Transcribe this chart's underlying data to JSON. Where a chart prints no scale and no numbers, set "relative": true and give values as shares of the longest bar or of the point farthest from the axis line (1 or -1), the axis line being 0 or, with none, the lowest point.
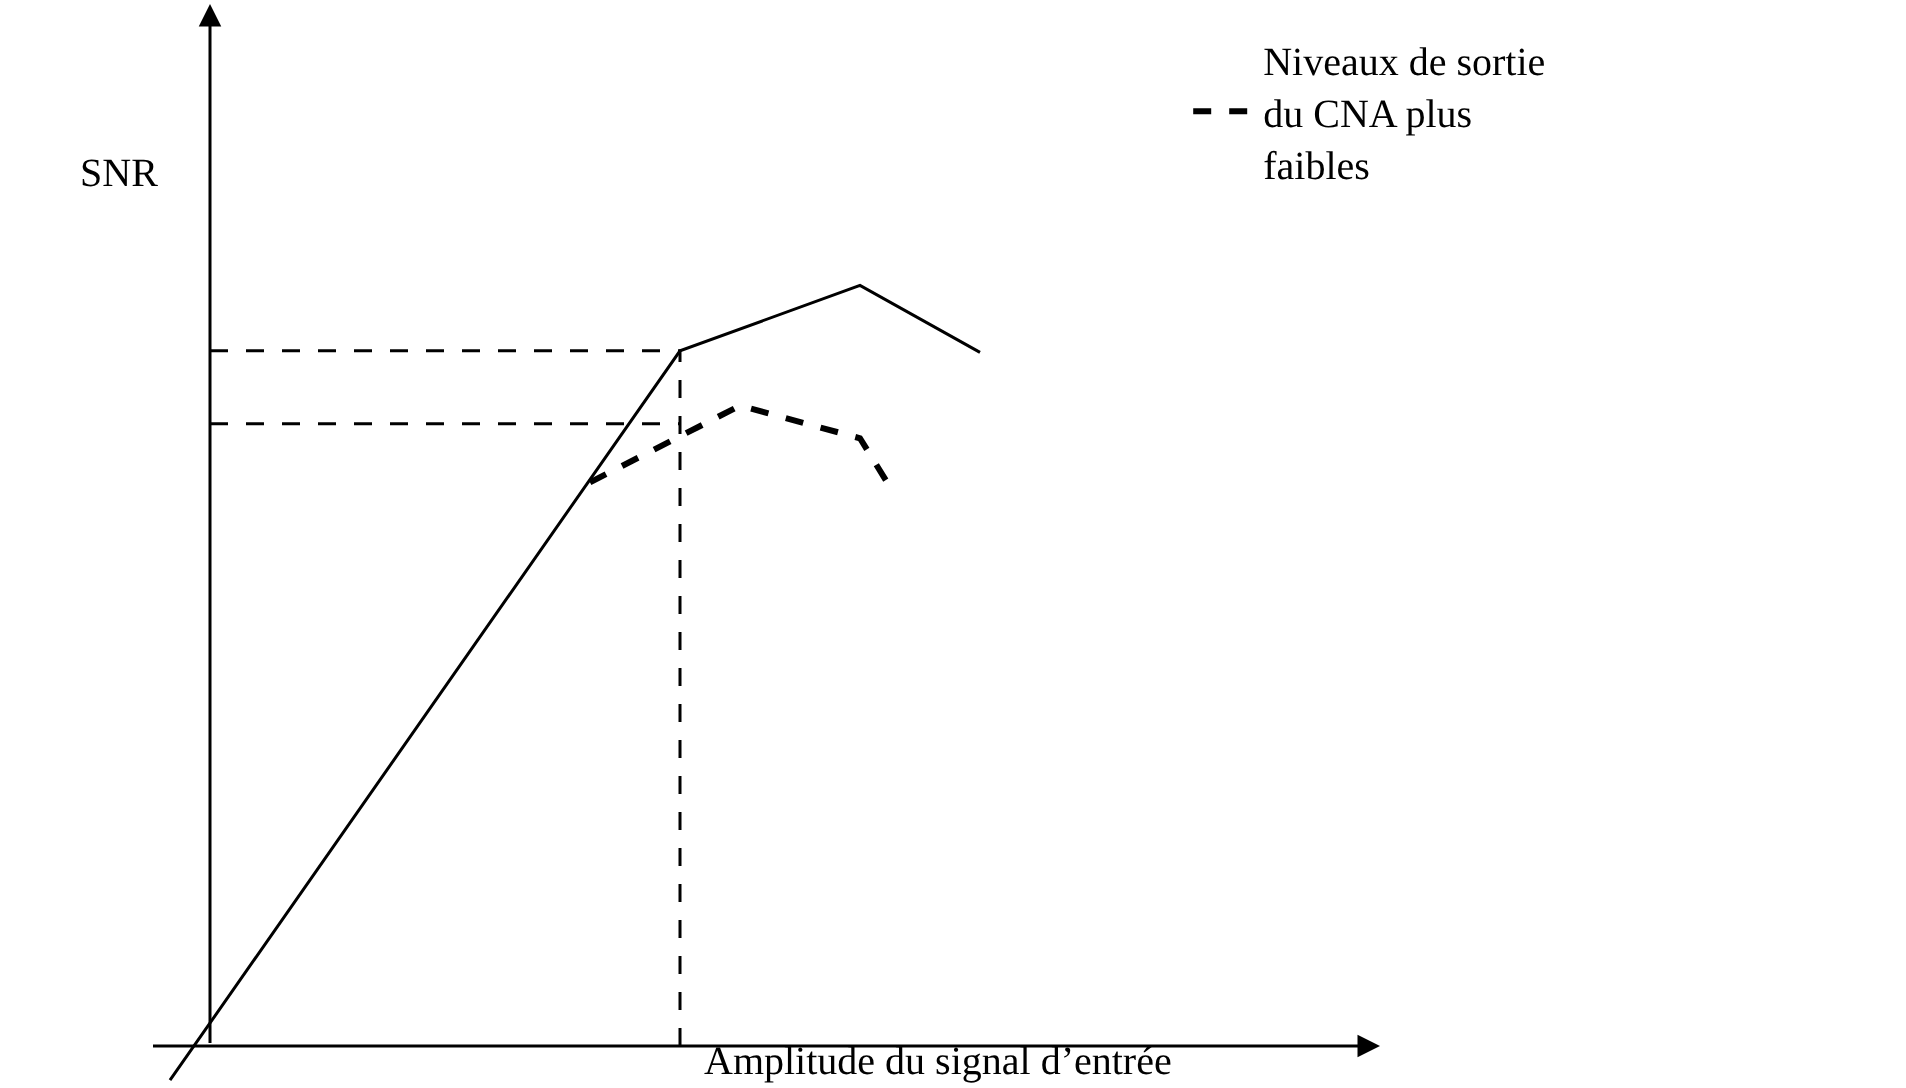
{
  "chart_data": {
    "type": "line",
    "relative": true,
    "xlabel": "Amplitude du signal d’entrée",
    "ylabel": "SNR",
    "categories": [
      null,
      null,
      null,
      null,
      null,
      null,
      null,
      null,
      null,
      null,
      null,
      null,
      null,
      null,
      null,
      null,
      null,
      null,
      null,
      null,
      null,
      null,
      null,
      null,
      null,
      null,
      null,
      null
    ],
    "series": [
      {
        "color": "#000000",
        "line_style": "solid",
        "values": [
          -0.045,
          null,
          null,
          null,
          null,
          null,
          null,
          null,
          null,
          null,
          null,
          null,
          null,
          null,
          null,
          null,
          null,
          0.914,
          null,
          null,
          null,
          null,
          null,
          1,
          null,
          null,
          null,
          0.912
        ]
      },
      {
        "name": "Niveaux de sortie du CNA plus faibles",
        "color": "#000000",
        "line_style": "dashed",
        "values": [
          null,
          null,
          null,
          null,
          null,
          null,
          null,
          null,
          null,
          null,
          null,
          null,
          null,
          null,
          0.741,
          null,
          null,
          null,
          null,
          0.842,
          null,
          null,
          null,
          0.799,
          0.735,
          null,
          null,
          null
        ]
      }
    ],
    "ref_lines": [
      {
        "axis": "y",
        "value": 0.914,
        "line_style": "dashed",
        "color": "#000000"
      },
      {
        "axis": "y",
        "value": 0.818,
        "line_style": "dashed",
        "color": "#000000"
      }
    ],
    "legend": "top right",
    "marker": "none"
  }
}
